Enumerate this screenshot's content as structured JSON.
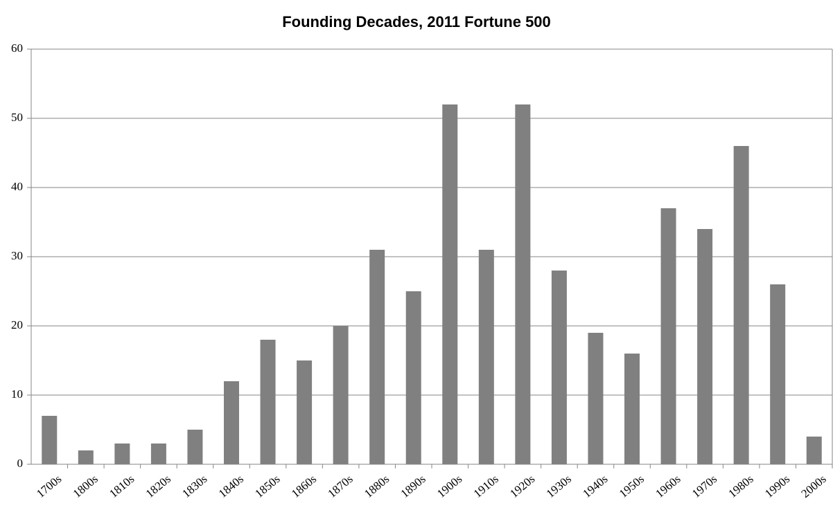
{
  "chart_data": {
    "type": "bar",
    "title": "Founding Decades, 2011 Fortune 500",
    "categories": [
      "1700s",
      "1800s",
      "1810s",
      "1820s",
      "1830s",
      "1840s",
      "1850s",
      "1860s",
      "1870s",
      "1880s",
      "1890s",
      "1900s",
      "1910s",
      "1920s",
      "1930s",
      "1940s",
      "1950s",
      "1960s",
      "1970s",
      "1980s",
      "1990s",
      "2000s"
    ],
    "values": [
      7,
      2,
      3,
      3,
      5,
      12,
      18,
      15,
      20,
      31,
      25,
      52,
      31,
      52,
      28,
      19,
      16,
      37,
      34,
      46,
      26,
      4
    ],
    "color": "#808080",
    "ylim": [
      0,
      60
    ],
    "yticks": [
      0,
      10,
      20,
      30,
      40,
      50,
      60
    ],
    "grid": true
  }
}
